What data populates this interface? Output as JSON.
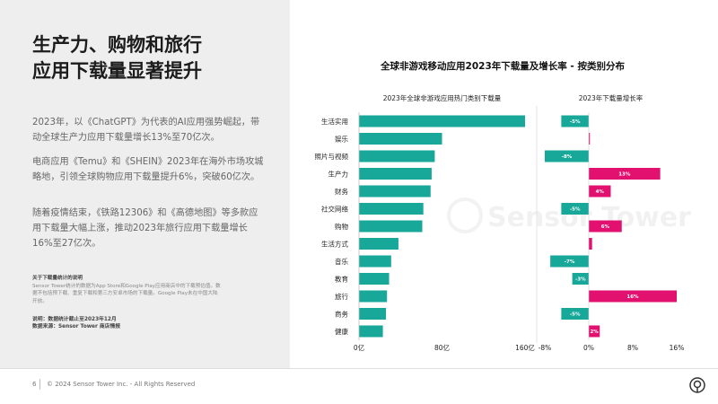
{
  "headline": {
    "line1": "生产力、购物和旅行",
    "line2": "应用下载量显著提升"
  },
  "paragraphs": {
    "p1": "2023年，以《ChatGPT》为代表的AI应用强势崛起，带动全球生产力应用下载量增长13%至70亿次。",
    "p2": "电商应用《Temu》和《SHEIN》2023年在海外市场攻城略地，引领全球购物应用下载量提升6%，突破60亿次。",
    "p3": "随着疫情结束，《铁路12306》和《高德地图》等多款应用下载量大幅上涨，推动2023年旅行应用下载量增长16%至27亿次。"
  },
  "note": {
    "title": "关于下载量统计的说明",
    "body": "Sensor Tower统计的数据为App Store和Google Play应用商店中的下载预估值。数据不包括预下载、重复下载和第三方安卓市场的下载量。Google Play未在中国大陆开放。"
  },
  "footnotes": {
    "f1": "说明：数据统计截止至2023年12月",
    "f2": "数据来源：Sensor Tower 商店情报"
  },
  "footer": {
    "page_number": "6",
    "copyright": "© 2024 Sensor Tower Inc. - All Rights Reserved"
  },
  "watermark": "Sensor Tower",
  "colors": {
    "teal": "#17a89a",
    "pink": "#e2106f"
  },
  "chart_title": "全球非游戏移动应用2023年下载量及增长率 - 按类别分布",
  "chart_data": [
    {
      "type": "bar",
      "orientation": "horizontal",
      "title": "2023年全球非游戏应用热门类别下载量",
      "categories": [
        "生活实用",
        "娱乐",
        "照片与视频",
        "生产力",
        "财务",
        "社交网络",
        "购物",
        "生活方式",
        "音乐",
        "教育",
        "旅行",
        "商务",
        "健康"
      ],
      "values": [
        160,
        80,
        73,
        70,
        69,
        62,
        61,
        38,
        31,
        29,
        27,
        26,
        23
      ],
      "unit": "亿",
      "xlim": [
        0,
        160
      ],
      "xticks": [
        "0亿",
        "80亿",
        "160亿"
      ]
    },
    {
      "type": "bar",
      "orientation": "horizontal",
      "title": "2023年下载量增长率",
      "categories": [
        "生活实用",
        "娱乐",
        "照片与视频",
        "生产力",
        "财务",
        "社交网络",
        "购物",
        "生活方式",
        "音乐",
        "教育",
        "旅行",
        "商务",
        "健康"
      ],
      "values": [
        -5,
        0.2,
        -8,
        13,
        4,
        -5,
        6,
        0.6,
        -7,
        -3,
        16,
        -5,
        2
      ],
      "labels": [
        "-5%",
        "",
        "-8%",
        "13%",
        "4%",
        "-5%",
        "6%",
        "",
        "-7%",
        "-3%",
        "16%",
        "-5%",
        "2%"
      ],
      "xlim": [
        -8,
        16
      ],
      "xticks": [
        "-8%",
        "0%",
        "8%",
        "16%"
      ]
    }
  ]
}
